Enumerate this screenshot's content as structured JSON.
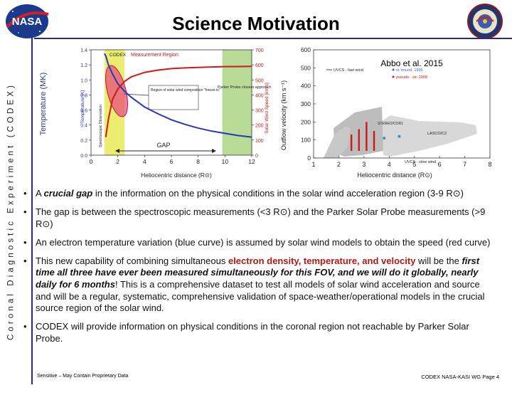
{
  "slide": {
    "title": "Science Motivation",
    "side_label": "Coronal Diagnostic Experiment (CODEX)",
    "nasa_logo_text": "NASA",
    "footer_left": "Sensitive – May Contain Proprietary Data",
    "footer_right": "CODEX NASA-KASI WG Page 4"
  },
  "left_figure": {
    "codex_label": "CODEX",
    "measurement_region_label": "Measurement Region",
    "spectroscopic_label": "Spectroscopic Observation",
    "parker_label": "Parker Probe closest approach",
    "freeze_label": "Region of solar wind composition \"freeze-in\"",
    "gap_label": "GAP",
    "xlabel": "Heliocentric distance (R⊙)",
    "ylabel_inner": "Temperature [K]",
    "ylabel_overlay": "Temperature (MK)",
    "y2label": "Solar Wind Speed [km/s]",
    "colors": {
      "temperature": "#2838b8",
      "speed": "#d01818",
      "codex": "#ecec70",
      "parker": "#b8dc96",
      "ellipse": "#e8507a"
    }
  },
  "right_figure": {
    "citation": "Abbo et al. 2015",
    "ylabel": "Outflow velocity (km s⁻¹)",
    "xlabel": "Heliocentric distance (R⊙)",
    "legend": [
      "UVCS - fast wind",
      "sl. bound. 1995",
      "pseudo - str. 2008",
      "UVCS - slow wind"
    ],
    "stereo_label": "STEREO/COR1",
    "lasco_label": "LASCO/C2"
  },
  "chart_data": [
    {
      "type": "line",
      "title": "",
      "xlabel": "Heliocentric distance (R⊙)",
      "ylabel": "Temperature [K]",
      "y2label": "Solar Wind Speed [km/s]",
      "xlim": [
        0,
        12
      ],
      "ylim": [
        0,
        1.4
      ],
      "y2lim": [
        0,
        700
      ],
      "x_ticks": [
        "0",
        "2",
        "4",
        "6",
        "8",
        "10",
        "12"
      ],
      "y_ticks": [
        "0.0",
        "0.2",
        "0.4",
        "0.6",
        "0.8",
        "1.0",
        "1.2",
        "1.4"
      ],
      "y2_ticks": [
        "0",
        "100",
        "200",
        "300",
        "400",
        "500",
        "600",
        "700"
      ],
      "series": [
        {
          "axis": "left",
          "x": [
            1.0,
            1.1,
            1.3,
            1.6,
            2.0,
            2.5,
            3,
            4,
            5,
            6,
            7,
            8,
            9,
            10,
            11,
            12
          ],
          "y": [
            1.35,
            1.32,
            1.2,
            1.08,
            0.95,
            0.85,
            0.77,
            0.64,
            0.55,
            0.47,
            0.41,
            0.36,
            0.32,
            0.29,
            0.26,
            0.24
          ]
        },
        {
          "axis": "right",
          "x": [
            1.1,
            1.3,
            1.6,
            2.0,
            2.5,
            3,
            4,
            5,
            6,
            7,
            8,
            9,
            10,
            11,
            12
          ],
          "y": [
            120,
            240,
            370,
            440,
            490,
            520,
            550,
            565,
            575,
            580,
            583,
            586,
            588,
            589,
            590
          ]
        }
      ],
      "regions": [
        {
          "x": [
            1,
            2.5
          ]
        },
        {
          "x": [
            9.8,
            12
          ]
        }
      ]
    },
    {
      "type": "scatter",
      "title": "",
      "xlabel": "Heliocentric distance (R⊙)",
      "ylabel": "Outflow velocity (km s⁻¹)",
      "xlim": [
        1,
        8
      ],
      "ylim": [
        0,
        600
      ],
      "x_ticks": [
        "1",
        "2",
        "3",
        "4",
        "5",
        "6",
        "7",
        "8"
      ],
      "y_ticks": [
        "0",
        "100",
        "200",
        "300",
        "400",
        "500",
        "600"
      ],
      "series": [
        {
          "x": [
            2.5,
            2.8,
            3.1,
            3.4
          ],
          "y": [
            130,
            160,
            200,
            150
          ]
        },
        {
          "x": [
            3.8,
            4.4
          ],
          "y": [
            110,
            120
          ]
        }
      ]
    }
  ],
  "bullets": [
    {
      "parts": [
        {
          "t": "A "
        },
        {
          "t": "crucial gap",
          "s": "bi"
        },
        {
          "t": " in the information on the physical conditions in the solar wind acceleration region (3-9 R⊙)"
        }
      ]
    },
    {
      "parts": [
        {
          "t": "The gap is between the spectroscopic measurements (<3 R⊙) and the Parker Solar Probe measurements (>9 R⊙)"
        }
      ]
    },
    {
      "parts": [
        {
          "t": "An electron temperature variation (blue curve)  is assumed by solar wind models to obtain the speed (red curve)"
        }
      ]
    },
    {
      "parts": [
        {
          "t": "This new capability of combining simultaneous "
        },
        {
          "t": "electron density, temperature, and velocity",
          "s": "em-red"
        },
        {
          "t": " will be the "
        },
        {
          "t": "first time all three have ever been measured simultaneously for this FOV, and we will do it globally, nearly daily for 6 months",
          "s": "bi"
        },
        {
          "t": "! This is a comprehensive dataset to test all models of solar wind acceleration and source and will be a regular, systematic, comprehensive validation of space-weather/operational models in the crucial source region of the solar wind."
        }
      ]
    },
    {
      "parts": [
        {
          "t": "CODEX will provide information on physical conditions in the coronal region not reachable by Parker Solar Probe."
        }
      ]
    }
  ]
}
